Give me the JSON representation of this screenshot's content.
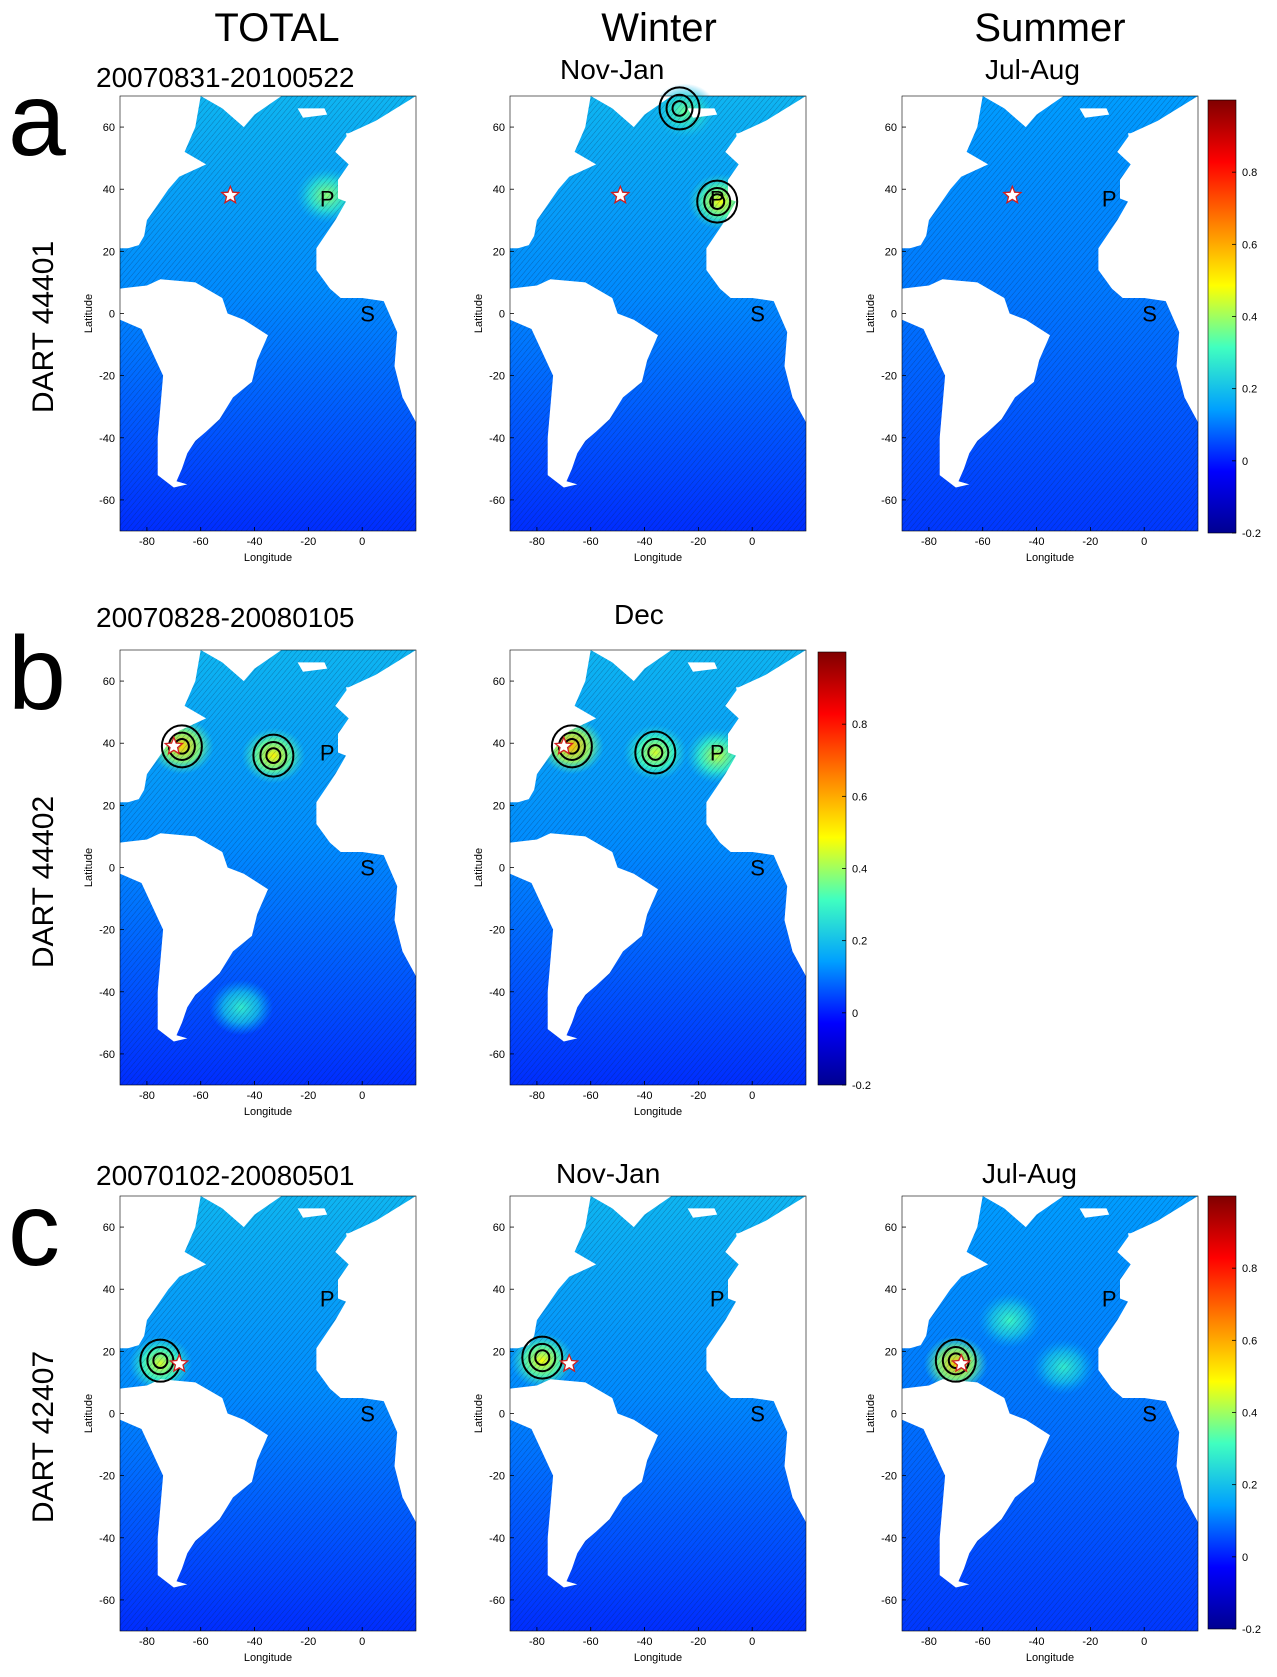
{
  "column_titles": [
    "TOTAL",
    "Winter",
    "Summer"
  ],
  "row_letters": [
    "a",
    "b",
    "c"
  ],
  "row_labels": [
    "DART 44401",
    "DART 44402",
    "DART 42407"
  ],
  "colors": {
    "ocean_low": "#1a3fc0",
    "ocean_mid": "#2a8fd8",
    "ocean_high": "#4fe0c8",
    "hotspot_yellow": "#e8e040",
    "star_fill": "#ffffff",
    "star_stroke": "#d02020",
    "land": "#ffffff",
    "hatch": "#0a1a40"
  },
  "chart_data": [
    {
      "type": "heatmap",
      "row": "a",
      "station": "DART 44401",
      "season": "TOTAL",
      "subtitle": "20070831-20100522",
      "xlabel": "Longitude",
      "ylabel": "Latitude",
      "xlim": [
        -90,
        20
      ],
      "ylim": [
        -70,
        70
      ],
      "xticks": [
        -80,
        -60,
        -40,
        -20,
        0
      ],
      "yticks": [
        -60,
        -40,
        -20,
        0,
        20,
        40,
        60
      ],
      "markers": [
        {
          "label": "P",
          "lon": -13,
          "lat": 37
        },
        {
          "label": "S",
          "lon": 2,
          "lat": 0
        }
      ],
      "station_location": {
        "lon": -49,
        "lat": 38
      },
      "hotspots": [
        {
          "lon": -13,
          "lat": 38,
          "value": 0.38
        }
      ],
      "contours": []
    },
    {
      "type": "heatmap",
      "row": "a",
      "station": "DART 44401",
      "season": "Winter",
      "subtitle": "Nov-Jan",
      "xlabel": "Longitude",
      "ylabel": "Latitude",
      "xlim": [
        -90,
        20
      ],
      "ylim": [
        -70,
        70
      ],
      "xticks": [
        -80,
        -60,
        -40,
        -20,
        0
      ],
      "yticks": [
        -60,
        -40,
        -20,
        0,
        20,
        40,
        60
      ],
      "markers": [
        {
          "label": "P",
          "lon": -13,
          "lat": 37
        },
        {
          "label": "S",
          "lon": 2,
          "lat": 0
        }
      ],
      "station_location": {
        "lon": -49,
        "lat": 38
      },
      "hotspots": [
        {
          "lon": -12,
          "lat": 36,
          "value": 0.48
        },
        {
          "lon": -25,
          "lat": 65,
          "value": 0.35
        }
      ],
      "contours": [
        {
          "lon": -13,
          "lat": 36
        },
        {
          "lon": -27,
          "lat": 66
        }
      ]
    },
    {
      "type": "heatmap",
      "row": "a",
      "station": "DART 44401",
      "season": "Summer",
      "subtitle": "Jul-Aug",
      "xlabel": "Longitude",
      "ylabel": "Latitude",
      "xlim": [
        -90,
        20
      ],
      "ylim": [
        -70,
        70
      ],
      "xticks": [
        -80,
        -60,
        -40,
        -20,
        0
      ],
      "yticks": [
        -60,
        -40,
        -20,
        0,
        20,
        40,
        60
      ],
      "markers": [
        {
          "label": "P",
          "lon": -13,
          "lat": 37
        },
        {
          "label": "S",
          "lon": 2,
          "lat": 0
        }
      ],
      "station_location": {
        "lon": -49,
        "lat": 38
      },
      "hotspots": [],
      "contours": []
    },
    {
      "type": "heatmap",
      "row": "b",
      "station": "DART 44402",
      "season": "TOTAL",
      "subtitle": "20070828-20080105",
      "xlabel": "Longitude",
      "ylabel": "Latitude",
      "xlim": [
        -90,
        20
      ],
      "ylim": [
        -70,
        70
      ],
      "xticks": [
        -80,
        -60,
        -40,
        -20,
        0
      ],
      "yticks": [
        -60,
        -40,
        -20,
        0,
        20,
        40,
        60
      ],
      "markers": [
        {
          "label": "P",
          "lon": -13,
          "lat": 37
        },
        {
          "label": "S",
          "lon": 2,
          "lat": 0
        }
      ],
      "station_location": {
        "lon": -70,
        "lat": 39
      },
      "hotspots": [
        {
          "lon": -67,
          "lat": 39,
          "value": 0.55
        },
        {
          "lon": -33,
          "lat": 36,
          "value": 0.5
        },
        {
          "lon": -45,
          "lat": -45,
          "value": 0.28
        }
      ],
      "contours": [
        {
          "lon": -67,
          "lat": 39
        },
        {
          "lon": -33,
          "lat": 36
        }
      ]
    },
    {
      "type": "heatmap",
      "row": "b",
      "station": "DART 44402",
      "season": "Winter",
      "subtitle": "Dec",
      "xlabel": "Longitude",
      "ylabel": "Latitude",
      "xlim": [
        -90,
        20
      ],
      "ylim": [
        -70,
        70
      ],
      "xticks": [
        -80,
        -60,
        -40,
        -20,
        0
      ],
      "yticks": [
        -60,
        -40,
        -20,
        0,
        20,
        40,
        60
      ],
      "markers": [
        {
          "label": "P",
          "lon": -13,
          "lat": 37
        },
        {
          "label": "S",
          "lon": 2,
          "lat": 0
        }
      ],
      "station_location": {
        "lon": -70,
        "lat": 39
      },
      "hotspots": [
        {
          "lon": -67,
          "lat": 39,
          "value": 0.58
        },
        {
          "lon": -36,
          "lat": 37,
          "value": 0.45
        },
        {
          "lon": -13,
          "lat": 36,
          "value": 0.42
        }
      ],
      "contours": [
        {
          "lon": -67,
          "lat": 39
        },
        {
          "lon": -36,
          "lat": 37
        }
      ]
    },
    {
      "type": "heatmap",
      "row": "c",
      "station": "DART 42407",
      "season": "TOTAL",
      "subtitle": "20070102-20080501",
      "xlabel": "Longitude",
      "ylabel": "Latitude",
      "xlim": [
        -90,
        20
      ],
      "ylim": [
        -70,
        70
      ],
      "xticks": [
        -80,
        -60,
        -40,
        -20,
        0
      ],
      "yticks": [
        -60,
        -40,
        -20,
        0,
        20,
        40,
        60
      ],
      "markers": [
        {
          "label": "P",
          "lon": -13,
          "lat": 37
        },
        {
          "label": "S",
          "lon": 2,
          "lat": 0
        }
      ],
      "station_location": {
        "lon": -68,
        "lat": 16
      },
      "hotspots": [
        {
          "lon": -75,
          "lat": 16,
          "value": 0.45
        }
      ],
      "contours": [
        {
          "lon": -75,
          "lat": 17
        }
      ]
    },
    {
      "type": "heatmap",
      "row": "c",
      "station": "DART 42407",
      "season": "Winter",
      "subtitle": "Nov-Jan",
      "xlabel": "Longitude",
      "ylabel": "Latitude",
      "xlim": [
        -90,
        20
      ],
      "ylim": [
        -70,
        70
      ],
      "xticks": [
        -80,
        -60,
        -40,
        -20,
        0
      ],
      "yticks": [
        -60,
        -40,
        -20,
        0,
        20,
        40,
        60
      ],
      "markers": [
        {
          "label": "P",
          "lon": -13,
          "lat": 37
        },
        {
          "label": "S",
          "lon": 2,
          "lat": 0
        }
      ],
      "station_location": {
        "lon": -68,
        "lat": 16
      },
      "hotspots": [
        {
          "lon": -78,
          "lat": 17,
          "value": 0.48
        }
      ],
      "contours": [
        {
          "lon": -78,
          "lat": 18
        }
      ]
    },
    {
      "type": "heatmap",
      "row": "c",
      "station": "DART 42407",
      "season": "Summer",
      "subtitle": "Jul-Aug",
      "xlabel": "Longitude",
      "ylabel": "Latitude",
      "xlim": [
        -90,
        20
      ],
      "ylim": [
        -70,
        70
      ],
      "xticks": [
        -80,
        -60,
        -40,
        -20,
        0
      ],
      "yticks": [
        -60,
        -40,
        -20,
        0,
        20,
        40,
        60
      ],
      "markers": [
        {
          "label": "P",
          "lon": -13,
          "lat": 37
        },
        {
          "label": "S",
          "lon": 2,
          "lat": 0
        }
      ],
      "station_location": {
        "lon": -68,
        "lat": 16
      },
      "hotspots": [
        {
          "lon": -70,
          "lat": 16,
          "value": 0.55
        },
        {
          "lon": -50,
          "lat": 30,
          "value": 0.3
        },
        {
          "lon": -30,
          "lat": 15,
          "value": 0.28
        }
      ],
      "contours": [
        {
          "lon": -70,
          "lat": 17
        }
      ]
    }
  ],
  "colorbar": {
    "ticks": [
      -0.2,
      0,
      0.2,
      0.4,
      0.6,
      0.8
    ],
    "tick_labels": [
      "-0.2",
      "0",
      "0.2",
      "0.4",
      "0.6",
      "0.8"
    ],
    "range": [
      -0.2,
      1.0
    ],
    "stops": [
      "#000090",
      "#0000ff",
      "#00a0ff",
      "#40ffc0",
      "#ffff00",
      "#ff8000",
      "#ff0000",
      "#800000"
    ]
  }
}
